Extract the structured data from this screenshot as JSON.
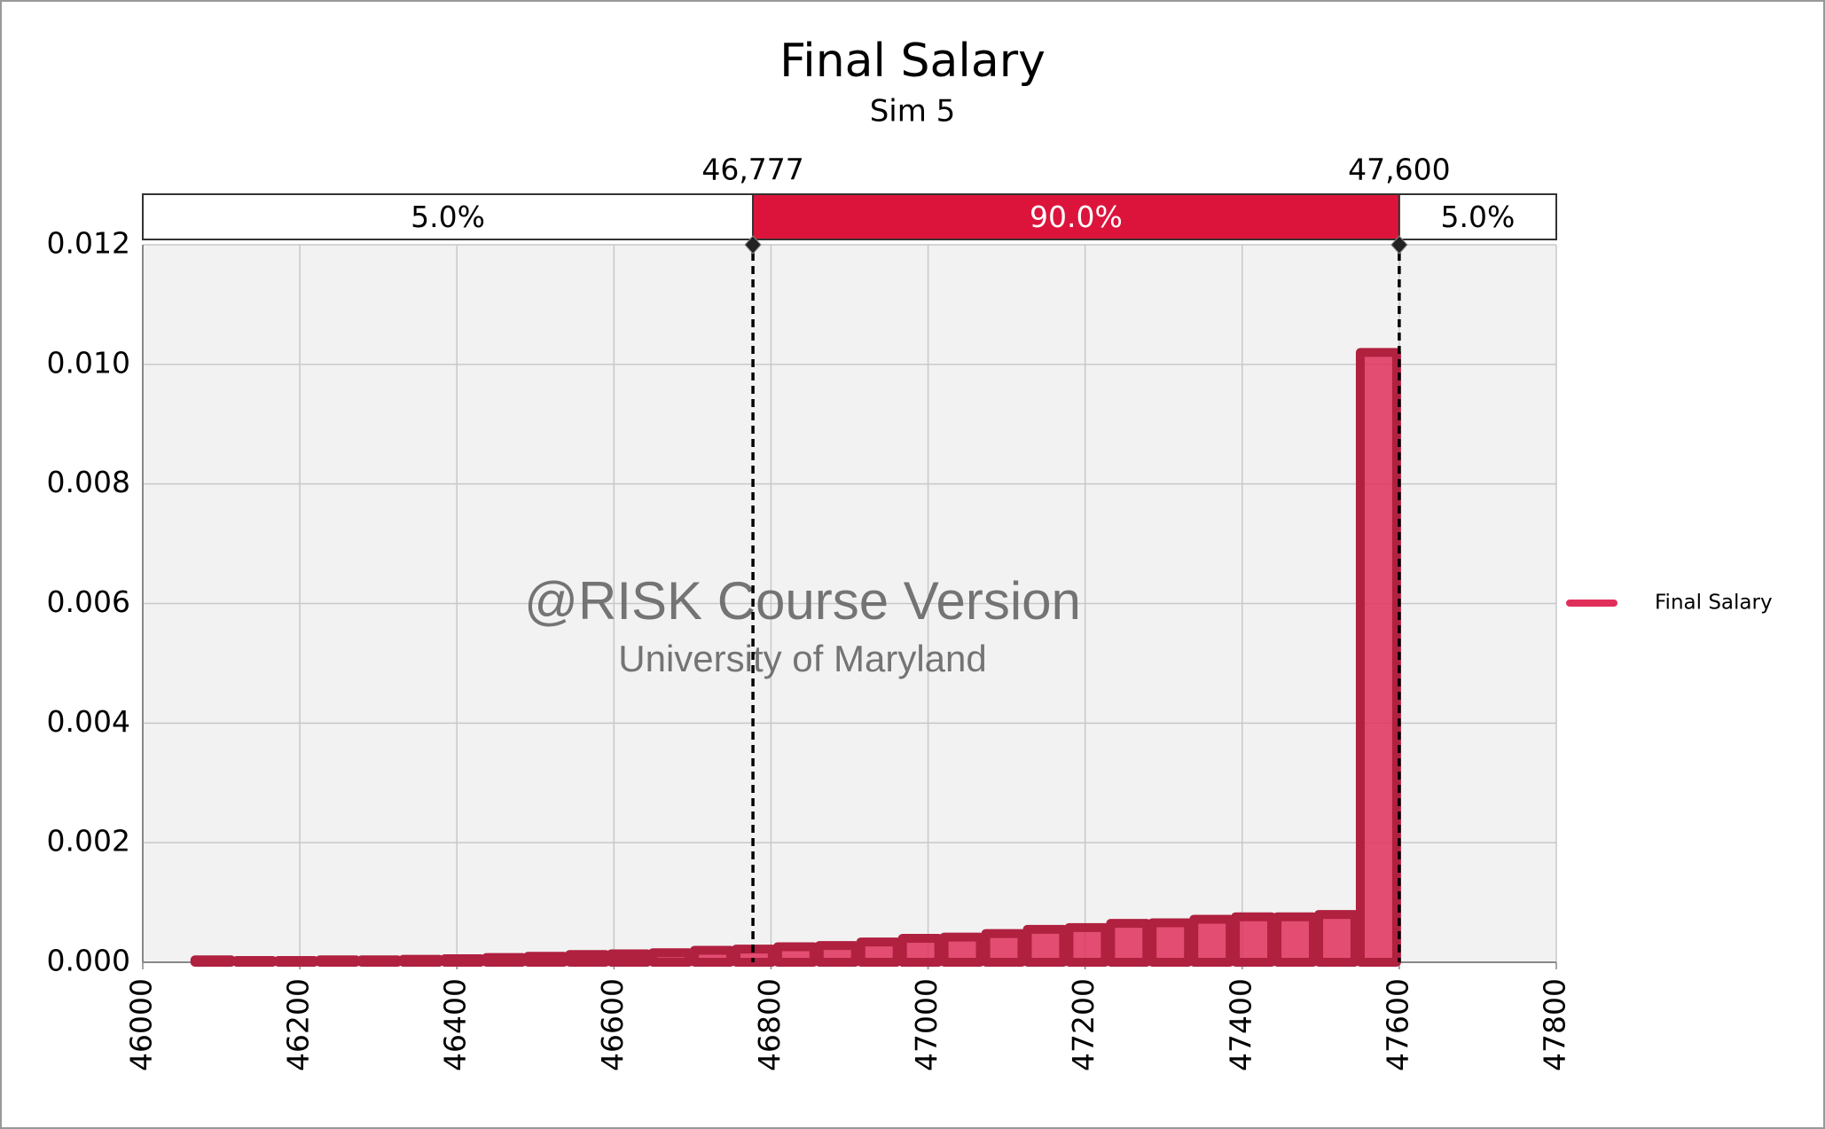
{
  "chart_data": {
    "type": "histogram",
    "title": "Final Salary",
    "subtitle": "Sim 5",
    "bins": [
      46063,
      46116,
      46169,
      46222,
      46275,
      46328,
      46381,
      46434,
      46487,
      46540,
      46593,
      46646,
      46699,
      46752,
      46805,
      46858,
      46911,
      46964,
      47017,
      47070,
      47123,
      47176,
      47229,
      47282,
      47335,
      47388,
      47441,
      47494,
      47547,
      47600
    ],
    "series": [
      {
        "name": "Final Salary",
        "color": "#e0305a",
        "values": [
          4e-05,
          3e-05,
          3e-05,
          4e-05,
          4e-05,
          5e-05,
          6e-05,
          8e-05,
          0.0001,
          0.00013,
          0.00014,
          0.00016,
          0.0002,
          0.00022,
          0.00026,
          0.00028,
          0.00034,
          0.0004,
          0.00042,
          0.00048,
          0.00055,
          0.00058,
          0.00065,
          0.00066,
          0.00072,
          0.00076,
          0.00076,
          0.0008,
          0.0102
        ]
      }
    ],
    "xlim": [
      46000,
      47800
    ],
    "xticks": [
      46000,
      46200,
      46400,
      46600,
      46800,
      47000,
      47200,
      47400,
      47600,
      47800
    ],
    "ylim": [
      0,
      0.012
    ],
    "yticks": [
      {
        "value": 0,
        "label": "0.000"
      },
      {
        "value": 0.002,
        "label": "0.002"
      },
      {
        "value": 0.004,
        "label": "0.004"
      },
      {
        "value": 0.006,
        "label": "0.006"
      },
      {
        "value": 0.008,
        "label": "0.008"
      },
      {
        "value": 0.01,
        "label": "0.010"
      },
      {
        "value": 0.012,
        "label": "0.012"
      }
    ],
    "grid": true,
    "delimiters": [
      {
        "value": 46777,
        "label": "46,777"
      },
      {
        "value": 47600,
        "label": "47,600"
      }
    ],
    "band": {
      "values": [
        5,
        90,
        5
      ],
      "value_labels": [
        "5.0%",
        "90.0%",
        "5.0%"
      ],
      "color": "#dc143c"
    },
    "watermark": [
      "@RISK Course Version",
      "University of Maryland"
    ],
    "legend": "right"
  }
}
